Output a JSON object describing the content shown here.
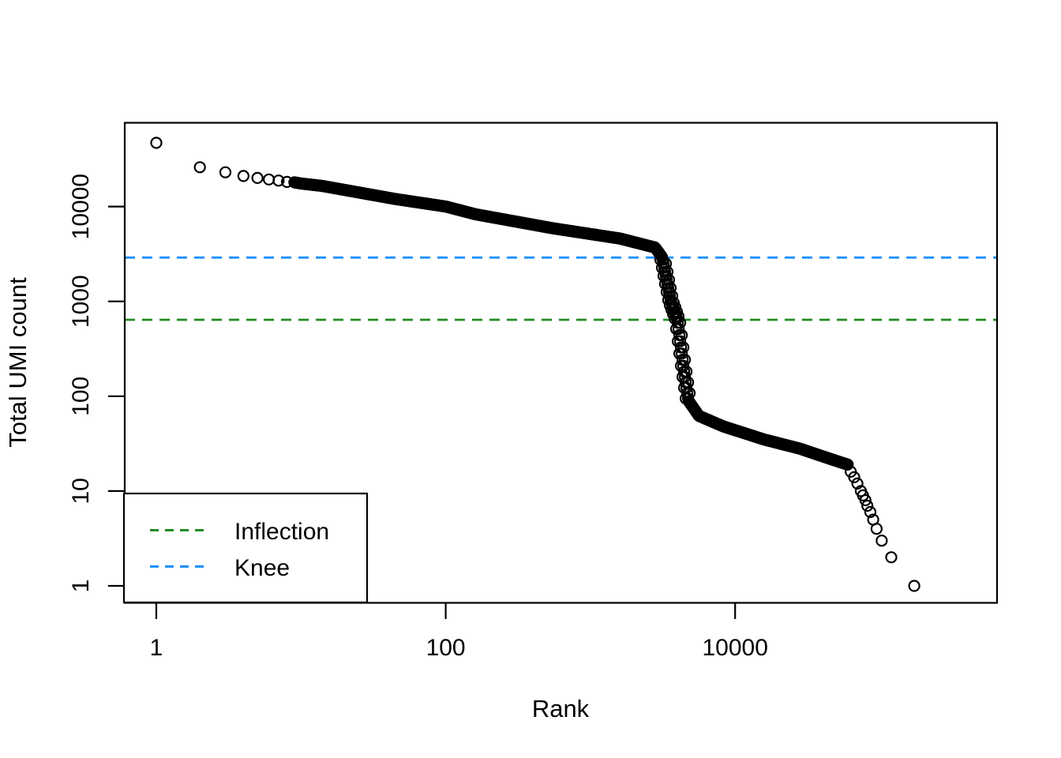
{
  "chart_data": {
    "type": "scatter",
    "title": "",
    "xlabel": "Rank",
    "ylabel": "Total UMI count",
    "x_scale": "log10",
    "y_scale": "log10",
    "x_ticks": [
      1,
      100,
      10000
    ],
    "y_ticks": [
      1,
      10,
      100,
      1000,
      10000
    ],
    "x_range_approx": [
      0.6,
      700000
    ],
    "y_range_approx": [
      0.8,
      80000
    ],
    "grid": false,
    "point_style": "open-circle",
    "point_color": "#000000",
    "points_low_rank": [
      [
        1,
        47000
      ],
      [
        2,
        26000
      ],
      [
        3,
        23000
      ],
      [
        4,
        21000
      ],
      [
        5,
        20000
      ],
      [
        6,
        19300
      ],
      [
        7,
        18800
      ],
      [
        8,
        18200
      ]
    ],
    "band_anchors": [
      [
        9,
        18000
      ],
      [
        10,
        17500
      ],
      [
        14,
        16500
      ],
      [
        45,
        12000
      ],
      [
        100,
        10000
      ],
      [
        160,
        8300
      ],
      [
        550,
        5900
      ],
      [
        1600,
        4600
      ],
      [
        2800,
        3700
      ],
      [
        3140,
        2900
      ],
      [
        3600,
        1000
      ],
      [
        3990,
        640
      ],
      [
        4400,
        200
      ],
      [
        4750,
        90
      ],
      [
        5620,
        62
      ],
      [
        8300,
        48
      ],
      [
        15800,
        35
      ],
      [
        28000,
        28
      ],
      [
        44700,
        22
      ],
      [
        60000,
        19
      ]
    ],
    "points_tail": [
      [
        63000,
        16
      ],
      [
        66500,
        14
      ],
      [
        70000,
        12
      ],
      [
        74000,
        10
      ],
      [
        76500,
        9
      ],
      [
        79600,
        8
      ],
      [
        82000,
        7
      ],
      [
        86000,
        6
      ],
      [
        90000,
        5
      ],
      [
        95000,
        4
      ],
      [
        103000,
        3
      ],
      [
        120000,
        2
      ],
      [
        173000,
        1
      ]
    ],
    "reference_lines": [
      {
        "name": "knee",
        "value": 2900,
        "color": "#1E90FF",
        "style": "dashed"
      },
      {
        "name": "inflection",
        "value": 640,
        "color": "#228B22",
        "style": "dashed"
      }
    ],
    "legend": {
      "position": "bottom-left",
      "entries": [
        {
          "label": "Inflection",
          "color": "#228B22",
          "line_style": "dashed"
        },
        {
          "label": "Knee",
          "color": "#1E90FF",
          "line_style": "dashed"
        }
      ]
    }
  }
}
